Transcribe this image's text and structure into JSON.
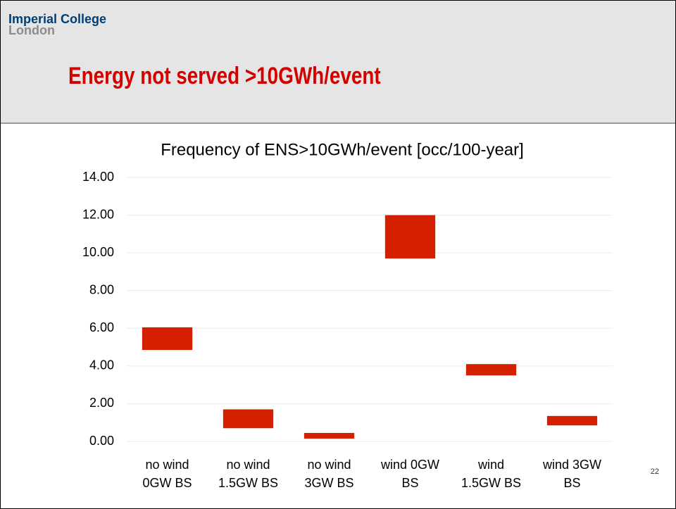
{
  "header": {
    "logo_line1": "Imperial College",
    "logo_line2": "London",
    "title": "Energy not served >10GWh/event"
  },
  "page_number": "22",
  "chart_data": {
    "type": "floating_bar",
    "title": "Frequency of ENS>10GWh/event [occ/100-year]",
    "categories": [
      [
        "no wind",
        "0GW BS"
      ],
      [
        "no wind",
        "1.5GW BS"
      ],
      [
        "no wind",
        "3GW BS"
      ],
      [
        "wind 0GW",
        "BS"
      ],
      [
        "wind",
        "1.5GW BS"
      ],
      [
        "wind 3GW",
        "BS"
      ]
    ],
    "low": [
      4.85,
      0.7,
      0.15,
      9.7,
      3.5,
      0.85
    ],
    "high": [
      6.05,
      1.7,
      0.45,
      12.0,
      4.1,
      1.35
    ],
    "color": "#d42000",
    "ylim": [
      0,
      14
    ],
    "yticks": [
      {
        "value": 0,
        "label": "0.00"
      },
      {
        "value": 2,
        "label": "2.00"
      },
      {
        "value": 4,
        "label": "4.00"
      },
      {
        "value": 6,
        "label": "6.00"
      },
      {
        "value": 8,
        "label": "8.00"
      },
      {
        "value": 10,
        "label": "10.00"
      },
      {
        "value": 12,
        "label": "12.00"
      },
      {
        "value": 14,
        "label": "14.00"
      }
    ],
    "grid": true
  }
}
